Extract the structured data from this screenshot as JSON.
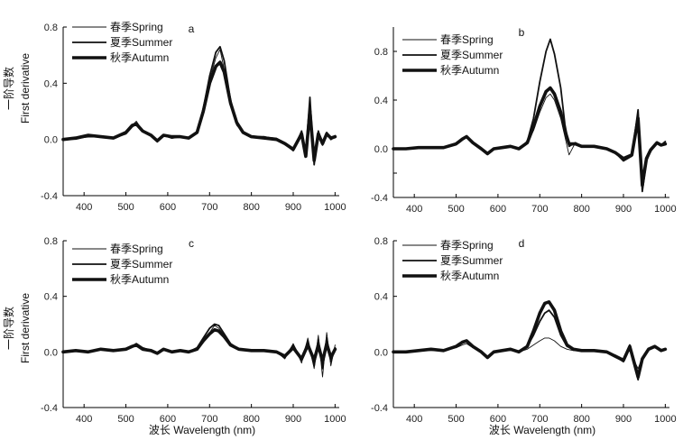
{
  "figure": {
    "ylabel_cn": "一阶导数",
    "ylabel_en": "First derivative",
    "xlabel": "波长 Wavelength (nm)"
  },
  "chart_data": [
    {
      "type": "line",
      "panel": "a",
      "xlim": [
        350,
        1010
      ],
      "ylim": [
        -0.4,
        0.8
      ],
      "xticks": [
        400,
        500,
        600,
        700,
        800,
        900,
        1000
      ],
      "yticks": [
        -0.4,
        0.0,
        0.4,
        0.8
      ],
      "yticklabels": [
        "-0.4",
        "0.0",
        "0.4",
        "0.8"
      ],
      "legend_position": "top-left",
      "series": [
        {
          "name": "春季Spring",
          "stroke": 0.9,
          "x": [
            350,
            380,
            410,
            440,
            470,
            500,
            515,
            525,
            540,
            560,
            575,
            590,
            610,
            630,
            650,
            670,
            685,
            700,
            715,
            725,
            735,
            750,
            765,
            780,
            800,
            830,
            860,
            880,
            900,
            920,
            930,
            940,
            950,
            960,
            970,
            980,
            990,
            1000
          ],
          "y": [
            0.0,
            0.0,
            0.02,
            0.02,
            0.01,
            0.04,
            0.1,
            0.13,
            0.06,
            0.03,
            -0.02,
            0.03,
            0.01,
            0.02,
            0.01,
            0.05,
            0.2,
            0.42,
            0.58,
            0.64,
            0.5,
            0.25,
            0.1,
            0.05,
            0.02,
            0.02,
            0.01,
            -0.02,
            -0.06,
            0.05,
            -0.08,
            0.25,
            -0.1,
            0.05,
            -0.02,
            0.04,
            0.01,
            0.03
          ]
        },
        {
          "name": "夏季Summer",
          "stroke": 1.8,
          "x": [
            350,
            380,
            410,
            440,
            470,
            500,
            515,
            525,
            540,
            560,
            575,
            590,
            610,
            630,
            650,
            670,
            685,
            700,
            715,
            725,
            735,
            750,
            765,
            780,
            800,
            830,
            860,
            880,
            900,
            920,
            930,
            940,
            950,
            960,
            970,
            980,
            990,
            1000
          ],
          "y": [
            0.0,
            0.01,
            0.02,
            0.02,
            0.01,
            0.04,
            0.09,
            0.11,
            0.06,
            0.03,
            -0.01,
            0.03,
            0.01,
            0.02,
            0.01,
            0.05,
            0.22,
            0.45,
            0.62,
            0.66,
            0.56,
            0.28,
            0.12,
            0.05,
            0.02,
            0.02,
            0.0,
            -0.03,
            -0.08,
            0.06,
            -0.1,
            0.3,
            -0.18,
            0.06,
            -0.04,
            0.05,
            0.0,
            0.02
          ]
        },
        {
          "name": "秋季Autumn",
          "stroke": 3.6,
          "x": [
            350,
            380,
            410,
            440,
            470,
            500,
            515,
            525,
            540,
            560,
            575,
            590,
            610,
            630,
            650,
            670,
            685,
            700,
            715,
            725,
            735,
            750,
            765,
            780,
            800,
            830,
            860,
            880,
            900,
            920,
            930,
            940,
            950,
            960,
            970,
            980,
            990,
            1000
          ],
          "y": [
            0.0,
            0.01,
            0.03,
            0.02,
            0.01,
            0.05,
            0.1,
            0.11,
            0.06,
            0.03,
            -0.01,
            0.03,
            0.02,
            0.02,
            0.01,
            0.05,
            0.2,
            0.4,
            0.52,
            0.55,
            0.48,
            0.26,
            0.12,
            0.05,
            0.02,
            0.01,
            0.0,
            -0.03,
            -0.07,
            0.04,
            -0.12,
            0.2,
            -0.15,
            0.04,
            -0.03,
            0.04,
            0.01,
            0.02
          ]
        }
      ]
    },
    {
      "type": "line",
      "panel": "b",
      "xlim": [
        350,
        1010
      ],
      "ylim": [
        -0.4,
        1.0
      ],
      "xticks": [
        400,
        500,
        600,
        700,
        800,
        900,
        1000
      ],
      "yticks": [
        -0.4,
        -0.2,
        0.0,
        0.4,
        0.8
      ],
      "yticklabels": [
        "-0.4",
        "",
        "0.0",
        "0.4",
        "0.8"
      ],
      "legend_position": "top-center",
      "series": [
        {
          "name": "春季Spring",
          "stroke": 0.9,
          "x": [
            350,
            380,
            410,
            440,
            470,
            500,
            515,
            525,
            540,
            560,
            575,
            590,
            610,
            630,
            650,
            670,
            685,
            700,
            715,
            725,
            735,
            750,
            760,
            770,
            785,
            800,
            830,
            860,
            880,
            900,
            920,
            935,
            945,
            955,
            965,
            980,
            990,
            1000
          ],
          "y": [
            0.0,
            0.0,
            0.01,
            0.01,
            0.01,
            0.04,
            0.08,
            0.09,
            0.05,
            0.0,
            -0.05,
            0.0,
            0.01,
            0.02,
            0.0,
            0.05,
            0.15,
            0.3,
            0.42,
            0.45,
            0.4,
            0.25,
            0.1,
            -0.05,
            0.05,
            0.02,
            0.02,
            0.0,
            -0.03,
            -0.08,
            -0.05,
            0.3,
            -0.25,
            -0.08,
            0.0,
            0.06,
            0.03,
            0.05
          ]
        },
        {
          "name": "夏季Summer",
          "stroke": 1.8,
          "x": [
            350,
            380,
            410,
            440,
            470,
            500,
            515,
            525,
            540,
            560,
            575,
            590,
            610,
            630,
            650,
            670,
            685,
            700,
            715,
            725,
            735,
            750,
            760,
            770,
            785,
            800,
            830,
            860,
            880,
            900,
            920,
            935,
            945,
            955,
            965,
            980,
            990,
            1000
          ],
          "y": [
            0.0,
            0.0,
            0.01,
            0.01,
            0.01,
            0.04,
            0.08,
            0.1,
            0.05,
            0.0,
            -0.04,
            0.0,
            0.01,
            0.02,
            0.0,
            0.06,
            0.25,
            0.55,
            0.8,
            0.9,
            0.78,
            0.5,
            0.2,
            0.02,
            0.05,
            0.02,
            0.02,
            0.0,
            -0.03,
            -0.1,
            -0.06,
            0.32,
            -0.35,
            -0.1,
            -0.02,
            0.05,
            0.03,
            0.06
          ]
        },
        {
          "name": "秋季Autumn",
          "stroke": 3.6,
          "x": [
            350,
            380,
            410,
            440,
            470,
            500,
            515,
            525,
            540,
            560,
            575,
            590,
            610,
            630,
            650,
            670,
            685,
            700,
            715,
            725,
            735,
            750,
            760,
            770,
            785,
            800,
            830,
            860,
            880,
            900,
            920,
            935,
            945,
            955,
            965,
            980,
            990,
            1000
          ],
          "y": [
            0.0,
            0.0,
            0.01,
            0.01,
            0.01,
            0.04,
            0.08,
            0.1,
            0.05,
            0.0,
            -0.04,
            0.0,
            0.01,
            0.02,
            0.0,
            0.05,
            0.18,
            0.35,
            0.47,
            0.5,
            0.45,
            0.3,
            0.15,
            0.04,
            0.04,
            0.02,
            0.02,
            0.0,
            -0.03,
            -0.08,
            -0.05,
            0.25,
            -0.3,
            -0.08,
            -0.01,
            0.05,
            0.03,
            0.04
          ]
        }
      ]
    },
    {
      "type": "line",
      "panel": "c",
      "xlim": [
        350,
        1010
      ],
      "ylim": [
        -0.4,
        0.8
      ],
      "xticks": [
        400,
        500,
        600,
        700,
        800,
        900,
        1000
      ],
      "yticks": [
        -0.4,
        0.0,
        0.4,
        0.8
      ],
      "yticklabels": [
        "-0.4",
        "0.0",
        "0.4",
        "0.8"
      ],
      "legend_position": "top-left",
      "series": [
        {
          "name": "春季Spring",
          "stroke": 0.9,
          "x": [
            350,
            380,
            410,
            440,
            470,
            500,
            515,
            525,
            540,
            560,
            575,
            590,
            610,
            630,
            650,
            670,
            685,
            700,
            712,
            722,
            735,
            750,
            770,
            800,
            830,
            860,
            880,
            900,
            920,
            935,
            950,
            960,
            970,
            980,
            990,
            1000
          ],
          "y": [
            0.0,
            0.01,
            0.0,
            0.02,
            0.01,
            0.02,
            0.04,
            0.05,
            0.02,
            0.01,
            -0.01,
            0.02,
            0.0,
            0.01,
            0.0,
            0.02,
            0.07,
            0.14,
            0.19,
            0.17,
            0.12,
            0.05,
            0.02,
            0.01,
            0.01,
            0.0,
            -0.05,
            0.06,
            -0.08,
            0.1,
            -0.12,
            0.12,
            -0.18,
            0.14,
            -0.1,
            0.05
          ]
        },
        {
          "name": "夏季Summer",
          "stroke": 1.8,
          "x": [
            350,
            380,
            410,
            440,
            470,
            500,
            515,
            525,
            540,
            560,
            575,
            590,
            610,
            630,
            650,
            670,
            685,
            700,
            712,
            722,
            735,
            750,
            770,
            800,
            830,
            860,
            880,
            900,
            920,
            935,
            950,
            960,
            970,
            980,
            990,
            1000
          ],
          "y": [
            0.0,
            0.01,
            0.0,
            0.02,
            0.01,
            0.02,
            0.04,
            0.06,
            0.03,
            0.01,
            -0.01,
            0.02,
            0.0,
            0.01,
            0.0,
            0.03,
            0.1,
            0.17,
            0.2,
            0.19,
            0.13,
            0.06,
            0.02,
            0.01,
            0.01,
            0.0,
            -0.04,
            0.05,
            -0.06,
            0.08,
            -0.1,
            0.09,
            -0.12,
            0.1,
            -0.07,
            0.03
          ]
        },
        {
          "name": "秋季Autumn",
          "stroke": 3.6,
          "x": [
            350,
            380,
            410,
            440,
            470,
            500,
            515,
            525,
            540,
            560,
            575,
            590,
            610,
            630,
            650,
            670,
            685,
            700,
            712,
            722,
            735,
            750,
            770,
            800,
            830,
            860,
            880,
            900,
            920,
            935,
            950,
            960,
            970,
            980,
            990,
            1000
          ],
          "y": [
            0.0,
            0.01,
            0.0,
            0.02,
            0.01,
            0.02,
            0.04,
            0.05,
            0.02,
            0.01,
            -0.01,
            0.02,
            0.0,
            0.01,
            0.0,
            0.02,
            0.08,
            0.13,
            0.16,
            0.15,
            0.11,
            0.05,
            0.02,
            0.01,
            0.01,
            0.0,
            -0.03,
            0.03,
            -0.05,
            0.05,
            -0.06,
            0.05,
            -0.07,
            0.06,
            -0.04,
            0.02
          ]
        }
      ]
    },
    {
      "type": "line",
      "panel": "d",
      "xlim": [
        350,
        1010
      ],
      "ylim": [
        -0.4,
        0.8
      ],
      "xticks": [
        400,
        500,
        600,
        700,
        800,
        900,
        1000
      ],
      "yticks": [
        -0.4,
        0.0,
        0.4,
        0.8
      ],
      "yticklabels": [
        "-0.4",
        "0.0",
        "0.4",
        "0.8"
      ],
      "legend_position": "top-center",
      "series": [
        {
          "name": "春季Spring",
          "stroke": 0.9,
          "x": [
            350,
            380,
            410,
            440,
            470,
            500,
            515,
            525,
            540,
            560,
            575,
            590,
            610,
            630,
            650,
            670,
            685,
            700,
            712,
            722,
            735,
            750,
            765,
            780,
            800,
            830,
            860,
            880,
            900,
            915,
            925,
            935,
            945,
            960,
            975,
            990,
            1000
          ],
          "y": [
            0.0,
            0.0,
            0.01,
            0.01,
            0.01,
            0.03,
            0.05,
            0.06,
            0.03,
            0.0,
            -0.03,
            0.0,
            0.01,
            0.01,
            0.0,
            0.02,
            0.05,
            0.08,
            0.1,
            0.1,
            0.08,
            0.04,
            0.02,
            0.01,
            0.01,
            0.01,
            0.0,
            -0.02,
            -0.05,
            0.04,
            -0.06,
            -0.12,
            -0.04,
            0.02,
            0.03,
            0.01,
            0.02
          ]
        },
        {
          "name": "夏季Summer",
          "stroke": 1.8,
          "x": [
            350,
            380,
            410,
            440,
            470,
            500,
            515,
            525,
            540,
            560,
            575,
            590,
            610,
            630,
            650,
            670,
            685,
            700,
            712,
            722,
            735,
            750,
            765,
            780,
            800,
            830,
            860,
            880,
            900,
            915,
            925,
            935,
            945,
            960,
            975,
            990,
            1000
          ],
          "y": [
            0.0,
            0.0,
            0.01,
            0.02,
            0.01,
            0.04,
            0.07,
            0.08,
            0.04,
            0.0,
            -0.04,
            0.0,
            0.01,
            0.02,
            0.0,
            0.04,
            0.12,
            0.22,
            0.28,
            0.3,
            0.25,
            0.12,
            0.04,
            0.02,
            0.01,
            0.01,
            0.0,
            -0.03,
            -0.07,
            0.05,
            -0.08,
            -0.2,
            -0.06,
            0.02,
            0.04,
            0.01,
            0.02
          ]
        },
        {
          "name": "秋季Autumn",
          "stroke": 3.6,
          "x": [
            350,
            380,
            410,
            440,
            470,
            500,
            515,
            525,
            540,
            560,
            575,
            590,
            610,
            630,
            650,
            670,
            685,
            700,
            712,
            722,
            735,
            750,
            765,
            780,
            800,
            830,
            860,
            880,
            900,
            915,
            925,
            935,
            945,
            960,
            975,
            990,
            1000
          ],
          "y": [
            0.0,
            0.0,
            0.01,
            0.02,
            0.01,
            0.04,
            0.07,
            0.08,
            0.04,
            0.0,
            -0.04,
            0.0,
            0.01,
            0.02,
            0.0,
            0.04,
            0.15,
            0.28,
            0.35,
            0.36,
            0.3,
            0.15,
            0.05,
            0.02,
            0.01,
            0.01,
            0.0,
            -0.03,
            -0.06,
            0.04,
            -0.07,
            -0.18,
            -0.05,
            0.02,
            0.04,
            0.01,
            0.02
          ]
        }
      ]
    }
  ]
}
